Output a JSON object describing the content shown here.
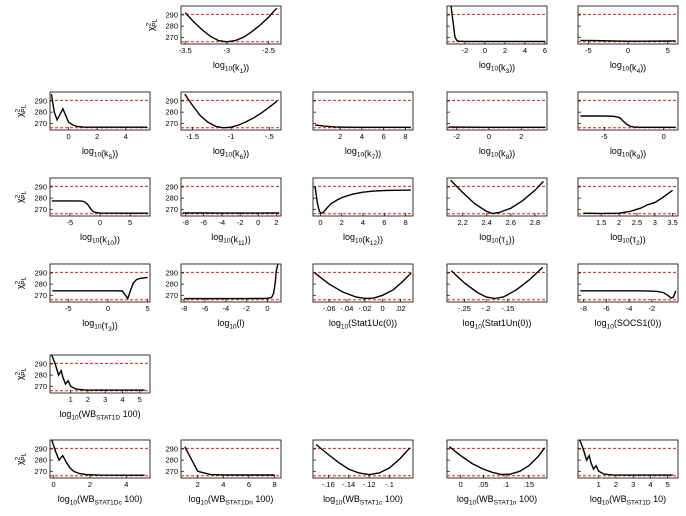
{
  "figure": {
    "ylabel": "χ²PL",
    "colors": {
      "profile": "#000000",
      "threshold": "#e02020",
      "axes": "#000000"
    }
  },
  "chart_data": [
    {
      "type": "line",
      "xlabel": "log10(k1)",
      "xlim": [
        -3.55,
        -2.35
      ],
      "ylim": [
        264,
        298
      ],
      "xticks": [
        -3.5,
        -3,
        -2.5
      ],
      "yticks": [
        270,
        280,
        290
      ],
      "thresholds": [
        290.5,
        266
      ],
      "x": [
        -3.5,
        -3.4,
        -3.3,
        -3.2,
        -3.1,
        -3.0,
        -2.9,
        -2.8,
        -2.7,
        -2.6,
        -2.5,
        -2.4
      ],
      "y": [
        292,
        284,
        277,
        271,
        267,
        266,
        267,
        270,
        275,
        281,
        288,
        296
      ]
    },
    {
      "type": "line",
      "xlabel": "log10(k3)",
      "xlim": [
        -3.8,
        6.2
      ],
      "ylim": [
        264,
        298
      ],
      "xticks": [
        -2,
        0,
        2,
        4,
        6
      ],
      "yticks": [
        270,
        280,
        290
      ],
      "thresholds": [
        290.5,
        266
      ],
      "x": [
        -3.4,
        -3.2,
        -3.0,
        -2.8,
        -2.6,
        -2,
        0,
        2,
        4,
        6
      ],
      "y": [
        298,
        284,
        270,
        267,
        266.5,
        266.3,
        266.3,
        266.3,
        266.3,
        266.3
      ]
    },
    {
      "type": "line",
      "xlabel": "log10(k4)",
      "xlim": [
        -6.3,
        6.3
      ],
      "ylim": [
        264,
        298
      ],
      "xticks": [
        -5,
        0,
        5
      ],
      "yticks": [
        270,
        280,
        290
      ],
      "thresholds": [
        290.5,
        266
      ],
      "x": [
        -6,
        -4,
        -2,
        0,
        2,
        4,
        6
      ],
      "y": [
        267.2,
        267,
        266.8,
        266.5,
        266.5,
        266.6,
        266.8
      ]
    },
    {
      "type": "line",
      "xlabel": "log10(k5)",
      "xlim": [
        -1.3,
        5.7
      ],
      "ylim": [
        264,
        298
      ],
      "xticks": [
        0,
        2,
        4
      ],
      "yticks": [
        270,
        280,
        290
      ],
      "thresholds": [
        290.5,
        266
      ],
      "x": [
        -1.2,
        -1.0,
        -0.8,
        -0.6,
        -0.4,
        -0.2,
        0,
        0.3,
        0.6,
        1.0,
        1.5,
        2,
        3,
        4,
        5.5
      ],
      "y": [
        296,
        280,
        273,
        278,
        283,
        277,
        271,
        268.5,
        267.2,
        266.6,
        266.5,
        266.5,
        266.5,
        266.5,
        266.5
      ]
    },
    {
      "type": "line",
      "xlabel": "log10(k6)",
      "xlim": [
        -1.65,
        -0.35
      ],
      "ylim": [
        264,
        298
      ],
      "xticks": [
        -1.5,
        -1,
        -0.5
      ],
      "yticks": [
        270,
        280,
        290
      ],
      "thresholds": [
        290.5,
        266
      ],
      "x": [
        -1.6,
        -1.5,
        -1.4,
        -1.3,
        -1.2,
        -1.1,
        -1.0,
        -0.9,
        -0.8,
        -0.7,
        -0.6,
        -0.5,
        -0.4
      ],
      "y": [
        296,
        286,
        277,
        271,
        267.3,
        266,
        266.5,
        268.5,
        271.5,
        275,
        279.5,
        284.5,
        290
      ]
    },
    {
      "type": "line",
      "xlabel": "log10(k7)",
      "xlim": [
        -0.5,
        8.7
      ],
      "ylim": [
        264,
        298
      ],
      "xticks": [
        2,
        4,
        6,
        8
      ],
      "yticks": [
        270,
        280,
        290
      ],
      "thresholds": [
        290.5,
        266
      ],
      "x": [
        -0.3,
        0.5,
        1.5,
        2.5,
        4,
        6,
        8.5
      ],
      "y": [
        268.5,
        267.5,
        266.8,
        266.5,
        266.4,
        266.4,
        266.4
      ]
    },
    {
      "type": "line",
      "xlabel": "log10(k8)",
      "xlim": [
        -2.6,
        3.6
      ],
      "ylim": [
        264,
        298
      ],
      "xticks": [
        -2,
        0,
        2
      ],
      "yticks": [
        270,
        280,
        290
      ],
      "thresholds": [
        290.5,
        266
      ],
      "x": [
        -2.5,
        -1,
        0,
        1,
        2,
        3.5
      ],
      "y": [
        266.6,
        266.5,
        266.4,
        266.4,
        266.4,
        266.4
      ]
    },
    {
      "type": "line",
      "xlabel": "log10(k9)",
      "xlim": [
        -7.2,
        1.2
      ],
      "ylim": [
        264,
        298
      ],
      "xticks": [
        -5,
        0
      ],
      "yticks": [
        270,
        280,
        290
      ],
      "thresholds": [
        290.5,
        266
      ],
      "x": [
        -7,
        -6,
        -5,
        -4.2,
        -3.7,
        -3.4,
        -3.1,
        -2.8,
        -2.5,
        -2,
        0,
        1
      ],
      "y": [
        276.5,
        276.5,
        276.5,
        276.3,
        275,
        272,
        269,
        267.3,
        266.6,
        266.4,
        266.4,
        266.4
      ]
    },
    {
      "type": "line",
      "xlabel": "log10(k10)",
      "xlim": [
        -8.3,
        8.3
      ],
      "ylim": [
        264,
        298
      ],
      "xticks": [
        -5,
        0,
        5
      ],
      "yticks": [
        270,
        280,
        290
      ],
      "thresholds": [
        290.5,
        266
      ],
      "x": [
        -8,
        -6,
        -4,
        -3,
        -2.5,
        -2,
        -1.5,
        -1,
        0,
        2,
        5,
        8
      ],
      "y": [
        277.5,
        277.5,
        277.5,
        277.3,
        276.5,
        274,
        270,
        267.5,
        266.6,
        266.5,
        266.5,
        266.5
      ]
    },
    {
      "type": "line",
      "xlabel": "log10(k11)",
      "xlim": [
        -8.5,
        2.5
      ],
      "ylim": [
        264,
        298
      ],
      "xticks": [
        -8,
        -6,
        -4,
        -2,
        0,
        2
      ],
      "yticks": [
        270,
        280,
        290
      ],
      "thresholds": [
        290.5,
        266
      ],
      "x": [
        -8.3,
        -6,
        -4,
        -2,
        0,
        2.3
      ],
      "y": [
        266.8,
        266.7,
        266.6,
        266.6,
        266.6,
        266.8
      ]
    },
    {
      "type": "line",
      "xlabel": "log10(k12)",
      "xlim": [
        -0.7,
        8.7
      ],
      "ylim": [
        264,
        298
      ],
      "xticks": [
        0,
        2,
        4,
        6,
        8
      ],
      "yticks": [
        270,
        280,
        290
      ],
      "thresholds": [
        290.5,
        266
      ],
      "x": [
        -0.5,
        -0.3,
        -0.1,
        0.1,
        0.3,
        0.6,
        1,
        1.5,
        2,
        3,
        4,
        5,
        6,
        7,
        8.5
      ],
      "y": [
        290,
        276,
        268,
        266.5,
        267.5,
        271,
        275,
        278,
        280.5,
        283.5,
        285.3,
        286.3,
        286.8,
        287,
        287.2
      ]
    },
    {
      "type": "line",
      "xlabel": "log10(τ1)",
      "xlim": [
        2.07,
        2.9
      ],
      "ylim": [
        264,
        298
      ],
      "xticks": [
        2.2,
        2.4,
        2.6,
        2.8
      ],
      "yticks": [
        270,
        280,
        290
      ],
      "thresholds": [
        290.5,
        266
      ],
      "x": [
        2.1,
        2.2,
        2.3,
        2.4,
        2.45,
        2.5,
        2.6,
        2.7,
        2.8,
        2.87
      ],
      "y": [
        296,
        285,
        275,
        268,
        266.2,
        267,
        271,
        278,
        287,
        295
      ]
    },
    {
      "type": "line",
      "xlabel": "log10(τ2)",
      "xlim": [
        0.85,
        3.65
      ],
      "ylim": [
        264,
        298
      ],
      "xticks": [
        1.5,
        2,
        2.5,
        3,
        3.5
      ],
      "yticks": [
        270,
        280,
        290
      ],
      "thresholds": [
        290.5,
        266
      ],
      "x": [
        1.0,
        1.5,
        2.0,
        2.3,
        2.6,
        2.8,
        3.0,
        3.2,
        3.5
      ],
      "y": [
        266.5,
        266.3,
        266.5,
        268,
        271,
        274,
        276,
        280,
        287
      ]
    },
    {
      "type": "line",
      "xlabel": "log10(τ3)",
      "xlim": [
        -7.3,
        5.3
      ],
      "ylim": [
        264,
        298
      ],
      "xticks": [
        -5,
        0,
        5
      ],
      "yticks": [
        270,
        280,
        290
      ],
      "thresholds": [
        290.5,
        266
      ],
      "x": [
        -7,
        -4,
        -1,
        1,
        1.8,
        2.2,
        2.5,
        2.8,
        3.2,
        3.6,
        4,
        5
      ],
      "y": [
        274,
        274,
        274,
        274,
        273.8,
        270,
        267,
        273.5,
        281,
        284,
        285,
        286
      ]
    },
    {
      "type": "line",
      "xlabel": "log10(l)",
      "xlim": [
        -8.3,
        1.3
      ],
      "ylim": [
        264,
        298
      ],
      "xticks": [
        -8,
        -6,
        -4,
        -2,
        0
      ],
      "yticks": [
        270,
        280,
        290
      ],
      "thresholds": [
        290.5,
        266
      ],
      "x": [
        -8,
        -6,
        -4,
        -2,
        0,
        0.4,
        0.6,
        0.75,
        0.85,
        1.0
      ],
      "y": [
        267,
        267,
        267,
        267,
        267.3,
        268,
        272,
        282,
        292,
        298
      ]
    },
    {
      "type": "line",
      "xlabel": "log10(Stat1Uc(0))",
      "xlim": [
        -0.078,
        0.034
      ],
      "ylim": [
        264,
        298
      ],
      "xticks": [
        -0.06,
        -0.04,
        -0.02,
        0,
        0.02
      ],
      "yticks": [
        270,
        280,
        290
      ],
      "thresholds": [
        290.5,
        266
      ],
      "x": [
        -0.076,
        -0.06,
        -0.045,
        -0.03,
        -0.02,
        -0.01,
        0,
        0.012,
        0.022,
        0.032
      ],
      "y": [
        290,
        280,
        273,
        268.5,
        267.2,
        267.5,
        270,
        275,
        282,
        290
      ]
    },
    {
      "type": "line",
      "xlabel": "log10(Stat1Un(0))",
      "xlim": [
        -0.29,
        -0.06
      ],
      "ylim": [
        264,
        298
      ],
      "xticks": [
        -0.25,
        -0.2,
        -0.15
      ],
      "yticks": [
        270,
        280,
        290
      ],
      "thresholds": [
        290.5,
        266
      ],
      "x": [
        -0.28,
        -0.25,
        -0.22,
        -0.2,
        -0.18,
        -0.16,
        -0.13,
        -0.1,
        -0.07
      ],
      "y": [
        292,
        281,
        272.5,
        268.5,
        267,
        268.5,
        275,
        284,
        295
      ]
    },
    {
      "type": "line",
      "xlabel": "log10(SOCS1(0))",
      "xlim": [
        -8.5,
        0.3
      ],
      "ylim": [
        264,
        298
      ],
      "xticks": [
        -8,
        -6,
        -4,
        -2
      ],
      "yticks": [
        270,
        280,
        290
      ],
      "thresholds": [
        290.5,
        266
      ],
      "x": [
        -8.3,
        -6,
        -4,
        -2.5,
        -1.5,
        -1,
        -0.6,
        -0.3,
        -0.1,
        0.1
      ],
      "y": [
        274,
        274,
        274,
        273.9,
        273.5,
        272.5,
        270,
        267.5,
        268.5,
        274
      ]
    },
    {
      "type": "line",
      "xlabel": "log10(WBSTAT1D 100)",
      "xlim": [
        -0.2,
        5.6
      ],
      "ylim": [
        264,
        298
      ],
      "xticks": [
        1,
        2,
        3,
        4,
        5
      ],
      "yticks": [
        270,
        280,
        290
      ],
      "thresholds": [
        290.5,
        266
      ],
      "x": [
        -0.1,
        0.1,
        0.3,
        0.45,
        0.55,
        0.7,
        0.85,
        1.0,
        1.3,
        1.8,
        2.5,
        3.5,
        5.3
      ],
      "y": [
        298,
        290,
        280,
        284,
        278,
        272,
        275,
        270,
        267.5,
        266.8,
        266.6,
        266.6,
        266.6
      ]
    },
    {
      "type": "line",
      "xlabel": "log10(WBSTAT1Dc 100)",
      "xlim": [
        -0.2,
        5.3
      ],
      "ylim": [
        264,
        298
      ],
      "xticks": [
        0,
        2,
        4
      ],
      "yticks": [
        270,
        280,
        290
      ],
      "thresholds": [
        290.5,
        266
      ],
      "x": [
        -0.1,
        0.1,
        0.3,
        0.5,
        0.7,
        0.9,
        1.1,
        1.4,
        1.8,
        2.5,
        3.5,
        5
      ],
      "y": [
        298,
        288,
        280,
        284,
        278,
        273,
        270,
        268,
        267,
        266.6,
        266.5,
        266.5
      ]
    },
    {
      "type": "line",
      "xlabel": "log10(WBSTAT1Dn 100)",
      "xlim": [
        0.7,
        8.5
      ],
      "ylim": [
        264,
        298
      ],
      "xticks": [
        2,
        4,
        6,
        8
      ],
      "yticks": [
        270,
        280,
        290
      ],
      "thresholds": [
        290.5,
        266
      ],
      "x": [
        1,
        2,
        3,
        4,
        5,
        6,
        7,
        8
      ],
      "y": [
        292,
        270,
        267,
        266.8,
        266.7,
        266.7,
        266.7,
        266.7
      ]
    },
    {
      "type": "line",
      "xlabel": "log10(WBSTAT1c 100)",
      "xlim": [
        -0.175,
        -0.077
      ],
      "ylim": [
        264,
        298
      ],
      "xticks": [
        -0.16,
        -0.14,
        -0.12,
        -0.1
      ],
      "yticks": [
        270,
        280,
        290
      ],
      "thresholds": [
        290.5,
        266
      ],
      "x": [
        -0.172,
        -0.16,
        -0.15,
        -0.14,
        -0.13,
        -0.12,
        -0.11,
        -0.1,
        -0.09,
        -0.08
      ],
      "y": [
        294,
        285,
        278,
        272,
        268.5,
        267,
        268.5,
        273,
        281,
        291
      ]
    },
    {
      "type": "line",
      "xlabel": "log10(WBSTAT1n 100)",
      "xlim": [
        -0.03,
        0.19
      ],
      "ylim": [
        264,
        298
      ],
      "xticks": [
        0,
        0.05,
        0.1,
        0.15
      ],
      "yticks": [
        270,
        280,
        290
      ],
      "thresholds": [
        290.5,
        266
      ],
      "x": [
        -0.025,
        0,
        0.025,
        0.05,
        0.07,
        0.09,
        0.11,
        0.13,
        0.15,
        0.17,
        0.185
      ],
      "y": [
        292,
        284,
        277,
        272,
        269,
        267,
        267.5,
        270,
        275,
        283,
        291
      ]
    },
    {
      "type": "line",
      "xlabel": "log10(WBSTAT1D 10)",
      "xlim": [
        -0.2,
        5.6
      ],
      "ylim": [
        264,
        298
      ],
      "xticks": [
        1,
        2,
        3,
        4,
        5
      ],
      "yticks": [
        270,
        280,
        290
      ],
      "thresholds": [
        290.5,
        266
      ],
      "x": [
        -0.1,
        0.1,
        0.3,
        0.45,
        0.55,
        0.7,
        0.85,
        1.0,
        1.3,
        1.8,
        2.5,
        3.5,
        5.3
      ],
      "y": [
        298,
        290,
        280,
        284,
        278,
        272,
        275,
        270,
        267.5,
        266.8,
        266.6,
        266.6,
        266.6
      ]
    }
  ]
}
